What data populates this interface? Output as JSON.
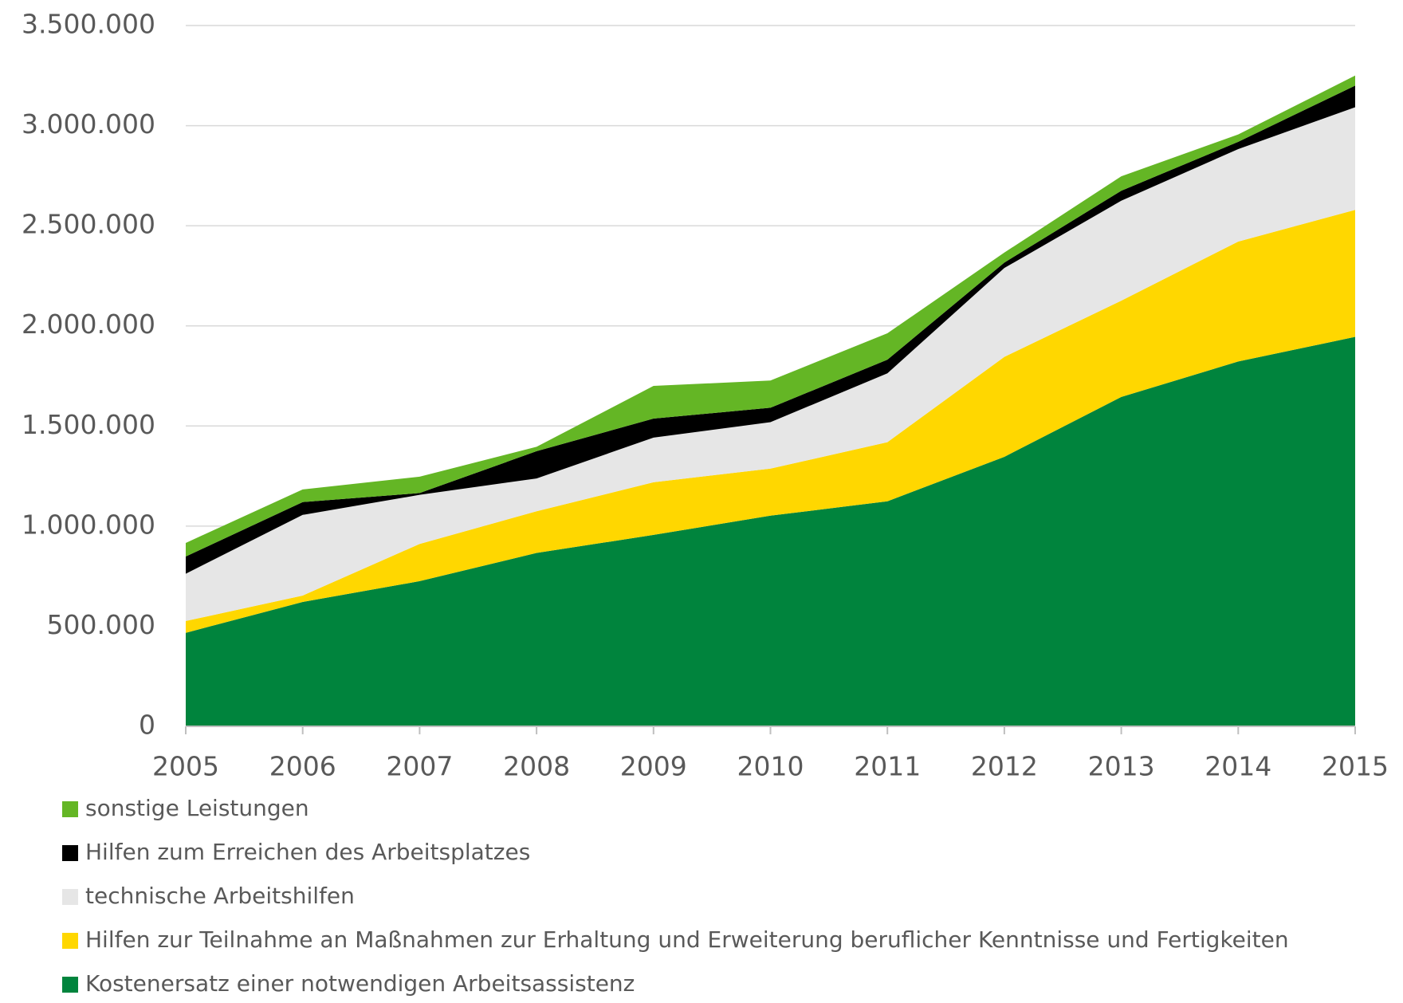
{
  "chart_data": {
    "type": "stacked-area",
    "categories": [
      "2005",
      "2006",
      "2007",
      "2008",
      "2009",
      "2010",
      "2011",
      "2012",
      "2013",
      "2014",
      "2015"
    ],
    "series": [
      {
        "name": "Kostenersatz einer notwendigen Arbeitsassistenz",
        "color": "#00843d",
        "values": [
          467000,
          621000,
          725000,
          866000,
          956000,
          1052000,
          1124000,
          1346000,
          1645000,
          1822000,
          1945000
        ]
      },
      {
        "name": "Hilfen zur Teilnahme an Maßnahmen zur Erhaltung und Erweiterung beruflicher Kenntnisse und Fertigkeiten",
        "color": "#ffd700",
        "values": [
          59000,
          32000,
          186000,
          208000,
          263000,
          235000,
          295000,
          499000,
          481000,
          599000,
          634000
        ]
      },
      {
        "name": "technische Arbeitshilfen",
        "color": "#e6e6e6",
        "values": [
          236000,
          403000,
          245000,
          164000,
          223000,
          232000,
          344000,
          444000,
          499000,
          462000,
          513000
        ]
      },
      {
        "name": "Hilfen zum Erreichen des Arbeitsplatzes",
        "color": "#000000",
        "values": [
          86000,
          64000,
          9000,
          136000,
          95000,
          72000,
          68000,
          27000,
          50000,
          36000,
          108000
        ]
      },
      {
        "name": "sonstige Leistungen",
        "color": "#64b625",
        "values": [
          68000,
          63000,
          82000,
          22000,
          163000,
          136000,
          132000,
          50000,
          72000,
          37000,
          50000
        ]
      }
    ],
    "ylim": [
      0,
      3500000
    ],
    "yticks": [
      0,
      {
        "value": 500000,
        "label": "500.000"
      },
      {
        "value": 1000000,
        "label": "1.000.000"
      },
      {
        "value": 1500000,
        "label": "1.500.000"
      },
      {
        "value": 2000000,
        "label": "2.000.000"
      },
      {
        "value": 2500000,
        "label": "2.500.000"
      },
      {
        "value": 3000000,
        "label": "3.000.000"
      },
      {
        "value": 3500000,
        "label": "3.500.000"
      }
    ],
    "grid": true
  }
}
